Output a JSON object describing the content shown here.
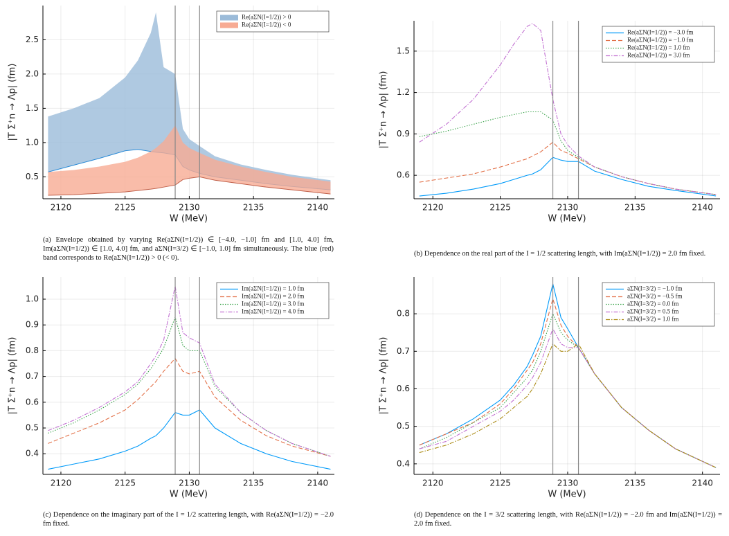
{
  "chart_data": [
    {
      "type": "area",
      "xlabel": "W (MeV)",
      "ylabel": "|T Σ⁺n → Λp| (fm)",
      "caption": "(a) Envelope obtained by varying Re(aΣN(I=1/2)) ∈ [−4.0, −1.0] fm and [1.0, 4.0] fm, Im(aΣN(I=1/2)) ∈ [1.0, 4.0] fm, and aΣN(I=3/2) ∈ [−1.0, 1.0] fm simultaneously. The blue (red) band corresponds to Re(aΣN(I=1/2)) > 0 (< 0).",
      "x": [
        2119,
        2121,
        2123,
        2125,
        2126,
        2127,
        2127.4,
        2128,
        2128.9,
        2129.5,
        2130,
        2130.8,
        2132,
        2134,
        2136,
        2138,
        2141
      ],
      "series": [
        {
          "name": "Re(aΣN(I=1/2)) > 0",
          "color": "#9bbbd9",
          "upper": [
            1.38,
            1.5,
            1.65,
            1.95,
            2.2,
            2.6,
            2.9,
            2.1,
            2.0,
            1.2,
            1.05,
            0.95,
            0.8,
            0.68,
            0.6,
            0.53,
            0.45
          ],
          "lower": [
            0.57,
            0.67,
            0.77,
            0.88,
            0.9,
            0.87,
            0.86,
            0.85,
            0.82,
            0.65,
            0.6,
            0.55,
            0.5,
            0.45,
            0.4,
            0.36,
            0.31
          ]
        },
        {
          "name": "Re(aΣN(I=1/2)) < 0",
          "color": "#f7ab94",
          "upper": [
            0.57,
            0.6,
            0.65,
            0.72,
            0.78,
            0.87,
            0.92,
            1.02,
            1.25,
            1.0,
            0.92,
            0.85,
            0.75,
            0.65,
            0.57,
            0.5,
            0.43
          ],
          "lower": [
            0.23,
            0.24,
            0.26,
            0.28,
            0.3,
            0.32,
            0.33,
            0.35,
            0.38,
            0.46,
            0.48,
            0.5,
            0.45,
            0.4,
            0.35,
            0.31,
            0.25
          ]
        }
      ],
      "xlim": [
        2118.6,
        2141.3
      ],
      "ylim": [
        0.18,
        3.0
      ],
      "xticks": [
        2120,
        2125,
        2130,
        2135,
        2140
      ],
      "yticks": [
        0.5,
        {
          "value": 1,
          "label": "1.0"
        },
        1.5,
        {
          "value": 2,
          "label": "2.0"
        },
        2.5
      ],
      "vlines": [
        2128.9,
        2130.8
      ],
      "grid": true,
      "legend": "top right"
    },
    {
      "type": "line",
      "xlabel": "W (MeV)",
      "ylabel": "|T Σ⁺n → Λp| (fm)",
      "caption": "(b) Dependence on the real part of the I = 1/2 scattering length, with Im(aΣN(I=1/2)) = 2.0 fm fixed.",
      "x": [
        2119,
        2121,
        2123,
        2125,
        2126,
        2127,
        2127.4,
        2128,
        2128.9,
        2129.5,
        2130,
        2130.8,
        2132,
        2134,
        2136,
        2138,
        2141
      ],
      "series": [
        {
          "name": "Re(aΣN(I=1/2)) = −3.0 fm",
          "color": "#009af9",
          "style": "solid",
          "values": [
            0.45,
            0.47,
            0.5,
            0.54,
            0.57,
            0.6,
            0.61,
            0.64,
            0.73,
            0.71,
            0.7,
            0.7,
            0.63,
            0.57,
            0.52,
            0.49,
            0.45
          ]
        },
        {
          "name": "Re(aΣN(I=1/2)) = −1.0 fm",
          "color": "#e26f46",
          "style": "dash",
          "values": [
            0.55,
            0.58,
            0.61,
            0.66,
            0.69,
            0.72,
            0.74,
            0.77,
            0.84,
            0.78,
            0.76,
            0.72,
            0.66,
            0.59,
            0.54,
            0.5,
            0.46
          ]
        },
        {
          "name": "Re(aΣN(I=1/2)) = 1.0 fm",
          "color": "#3da44d",
          "style": "dot",
          "values": [
            0.88,
            0.92,
            0.97,
            1.02,
            1.04,
            1.06,
            1.06,
            1.06,
            1.0,
            0.85,
            0.78,
            0.73,
            0.66,
            0.59,
            0.54,
            0.5,
            0.46
          ]
        },
        {
          "name": "Re(aΣN(I=1/2)) = 3.0 fm",
          "color": "#c271d2",
          "style": "dashdot",
          "values": [
            0.84,
            0.97,
            1.15,
            1.4,
            1.55,
            1.68,
            1.7,
            1.65,
            1.15,
            0.9,
            0.82,
            0.74,
            0.66,
            0.59,
            0.54,
            0.5,
            0.46
          ]
        }
      ],
      "xlim": [
        2118.6,
        2141.3
      ],
      "ylim": [
        0.43,
        1.72
      ],
      "xticks": [
        2120,
        2125,
        2130,
        2135,
        2140
      ],
      "yticks": [
        0.6,
        0.9,
        1.2,
        1.5
      ],
      "vlines": [
        2128.9,
        2130.8
      ],
      "grid": true,
      "legend": "top right"
    },
    {
      "type": "line",
      "xlabel": "W (MeV)",
      "ylabel": "|T Σ⁺n → Λp| (fm)",
      "caption": "(c) Dependence on the imaginary part of the I = 1/2 scattering length, with Re(aΣN(I=1/2)) = −2.0 fm fixed.",
      "x": [
        2119,
        2121,
        2123,
        2125,
        2126,
        2127,
        2127.4,
        2128,
        2128.9,
        2129.5,
        2130,
        2130.8,
        2132,
        2134,
        2136,
        2138,
        2141
      ],
      "series": [
        {
          "name": "Im(aΣN(I=1/2)) = 1.0 fm",
          "color": "#009af9",
          "style": "solid",
          "values": [
            0.34,
            0.36,
            0.38,
            0.41,
            0.43,
            0.46,
            0.47,
            0.5,
            0.56,
            0.55,
            0.55,
            0.57,
            0.5,
            0.44,
            0.4,
            0.37,
            0.34
          ]
        },
        {
          "name": "Im(aΣN(I=1/2)) = 2.0 fm",
          "color": "#e26f46",
          "style": "dash",
          "values": [
            0.44,
            0.48,
            0.52,
            0.57,
            0.61,
            0.66,
            0.68,
            0.72,
            0.77,
            0.72,
            0.71,
            0.72,
            0.62,
            0.53,
            0.47,
            0.43,
            0.39
          ]
        },
        {
          "name": "Im(aΣN(I=1/2)) = 3.0 fm",
          "color": "#3da44d",
          "style": "dot",
          "values": [
            0.48,
            0.52,
            0.57,
            0.63,
            0.67,
            0.73,
            0.76,
            0.81,
            0.93,
            0.82,
            0.8,
            0.8,
            0.66,
            0.56,
            0.49,
            0.44,
            0.39
          ]
        },
        {
          "name": "Im(aΣN(I=1/2)) = 4.0 fm",
          "color": "#c271d2",
          "style": "dashdot",
          "values": [
            0.49,
            0.53,
            0.58,
            0.64,
            0.68,
            0.75,
            0.78,
            0.84,
            1.05,
            0.87,
            0.85,
            0.83,
            0.67,
            0.56,
            0.49,
            0.44,
            0.39
          ]
        }
      ],
      "xlim": [
        2118.6,
        2141.3
      ],
      "ylim": [
        0.32,
        1.086
      ],
      "xticks": [
        2120,
        2125,
        2130,
        2135,
        2140
      ],
      "yticks": [
        0.4,
        0.5,
        0.6,
        0.7,
        0.8,
        0.9,
        {
          "value": 1,
          "label": "1.0"
        }
      ],
      "vlines": [
        2128.9,
        2130.8
      ],
      "grid": true,
      "legend": "top right"
    },
    {
      "type": "line",
      "xlabel": "W (MeV)",
      "ylabel": "|T Σ⁺n → Λp| (fm)",
      "caption": "(d) Dependence on the I = 3/2 scattering length, with Re(aΣN(I=1/2)) = −2.0 fm and Im(aΣN(I=1/2)) = 2.0 fm fixed.",
      "x": [
        2119,
        2121,
        2123,
        2125,
        2126,
        2127,
        2127.4,
        2128,
        2128.9,
        2129.5,
        2130,
        2130.8,
        2132,
        2134,
        2136,
        2138,
        2141
      ],
      "series": [
        {
          "name": "aΣN(I=3/2) = −1.0 fm",
          "color": "#009af9",
          "style": "solid",
          "values": [
            0.45,
            0.48,
            0.52,
            0.57,
            0.61,
            0.66,
            0.69,
            0.74,
            0.88,
            0.79,
            0.76,
            0.71,
            0.64,
            0.55,
            0.49,
            0.44,
            0.39
          ]
        },
        {
          "name": "aΣN(I=3/2) = −0.5 fm",
          "color": "#e26f46",
          "style": "dash",
          "values": [
            0.45,
            0.48,
            0.51,
            0.56,
            0.6,
            0.65,
            0.67,
            0.72,
            0.84,
            0.77,
            0.74,
            0.71,
            0.64,
            0.55,
            0.49,
            0.44,
            0.39
          ]
        },
        {
          "name": "aΣN(I=3/2) = 0.0 fm",
          "color": "#3da44d",
          "style": "dot",
          "values": [
            0.44,
            0.47,
            0.51,
            0.55,
            0.59,
            0.63,
            0.65,
            0.7,
            0.8,
            0.75,
            0.73,
            0.71,
            0.64,
            0.55,
            0.49,
            0.44,
            0.39
          ]
        },
        {
          "name": "aΣN(I=3/2) = 0.5 fm",
          "color": "#c271d2",
          "style": "dashdot",
          "values": [
            0.44,
            0.46,
            0.5,
            0.54,
            0.57,
            0.61,
            0.63,
            0.67,
            0.76,
            0.72,
            0.71,
            0.71,
            0.64,
            0.55,
            0.49,
            0.44,
            0.39
          ]
        },
        {
          "name": "aΣN(I=3/2) = 1.0 fm",
          "color": "#ac8d18",
          "style": "dashdot",
          "values": [
            0.43,
            0.45,
            0.48,
            0.52,
            0.55,
            0.58,
            0.6,
            0.64,
            0.72,
            0.7,
            0.7,
            0.72,
            0.64,
            0.55,
            0.49,
            0.44,
            0.39
          ]
        }
      ],
      "xlim": [
        2118.6,
        2141.3
      ],
      "ylim": [
        0.372,
        0.898
      ],
      "xticks": [
        2120,
        2125,
        2130,
        2135,
        2140
      ],
      "yticks": [
        0.4,
        0.5,
        0.6,
        0.7,
        0.8
      ],
      "vlines": [
        2128.9,
        2130.8
      ],
      "grid": true,
      "legend": "top right"
    }
  ]
}
